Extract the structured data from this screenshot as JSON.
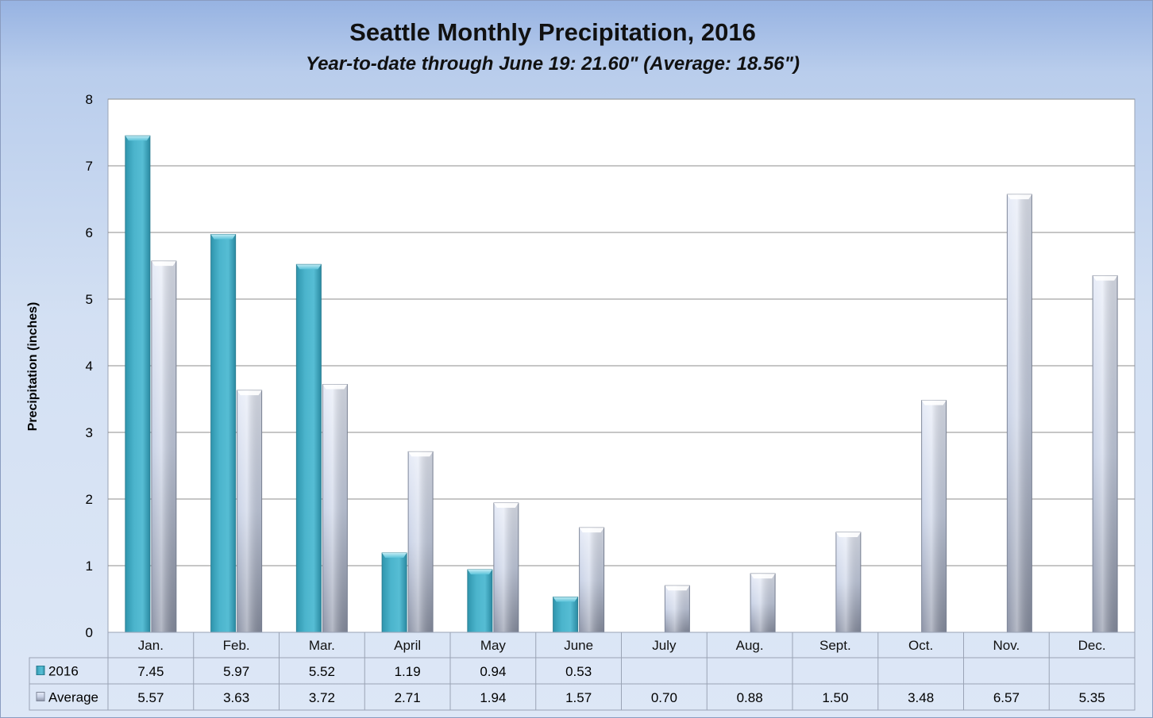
{
  "colors": {
    "series_2016": "#4bb4cc",
    "series_average": "#c9d2e6"
  },
  "chart_data": {
    "type": "bar",
    "title": "Seattle Monthly Precipitation, 2016",
    "subtitle": "Year-to-date through June 19: 21.60\" (Average: 18.56\")",
    "xlabel": "",
    "ylabel": "Precipitation (inches)",
    "ylim": [
      0,
      8
    ],
    "yticks": [
      "0",
      "1",
      "2",
      "3",
      "4",
      "5",
      "6",
      "7",
      "8"
    ],
    "grid": true,
    "legend": "data-table",
    "categories": [
      "Jan.",
      "Feb.",
      "Mar.",
      "April",
      "May",
      "June",
      "July",
      "Aug.",
      "Sept.",
      "Oct.",
      "Nov.",
      "Dec."
    ],
    "series": [
      {
        "name": "2016",
        "values": [
          7.45,
          5.97,
          5.52,
          1.19,
          0.94,
          0.53,
          null,
          null,
          null,
          null,
          null,
          null
        ],
        "labels": [
          "7.45",
          "5.97",
          "5.52",
          "1.19",
          "0.94",
          "0.53",
          "",
          "",
          "",
          "",
          "",
          ""
        ]
      },
      {
        "name": "Average",
        "values": [
          5.57,
          3.63,
          3.72,
          2.71,
          1.94,
          1.57,
          0.7,
          0.88,
          1.5,
          3.48,
          6.57,
          5.35
        ],
        "labels": [
          "5.57",
          "3.63",
          "3.72",
          "2.71",
          "1.94",
          "1.57",
          "0.70",
          "0.88",
          "1.50",
          "3.48",
          "6.57",
          "5.35"
        ]
      }
    ]
  }
}
